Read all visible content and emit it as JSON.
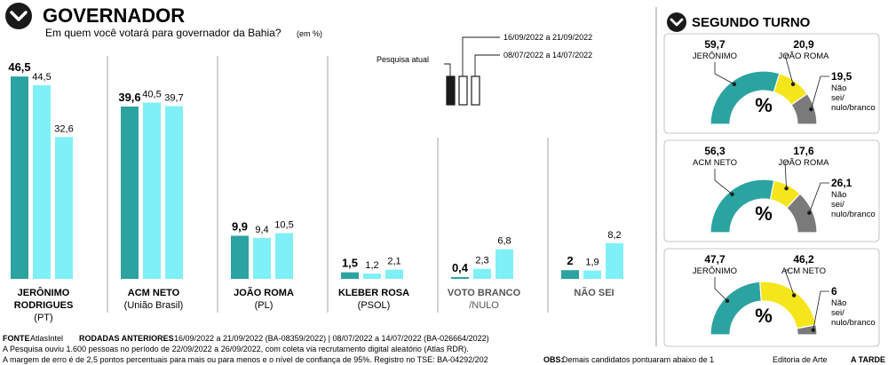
{
  "header": {
    "title": "GOVERNADOR",
    "subtitle": "Em quem você votará para governador da Bahia?",
    "unit": "(em %)"
  },
  "legend": {
    "current_label": "Pesquisa atual",
    "round1_period": "16/09/2022 a 21/09/2022",
    "round2_period": "08/07/2022 a 14/07/2022"
  },
  "chart_data": [
    {
      "type": "bar",
      "title": "GOVERNADOR",
      "subtitle": "Em quem você votará para governador da Bahia?",
      "ylim": [
        0,
        50
      ],
      "series": [
        {
          "name": "Pesquisa atual",
          "values": [
            46.5,
            39.6,
            9.9,
            1.5,
            0.4,
            2
          ],
          "labels": [
            "46,5",
            "39,6",
            "9,9",
            "1,5",
            "0,4",
            "2"
          ],
          "color": "#2ba3a0"
        },
        {
          "name": "16/09/2022 a 21/09/2022",
          "values": [
            44.5,
            40.5,
            9.4,
            1.2,
            2.3,
            1.9
          ],
          "labels": [
            "44,5",
            "40,5",
            "9,4",
            "1,2",
            "2,3",
            "1,9"
          ],
          "color": "#7ff0f6"
        },
        {
          "name": "08/07/2022 a 14/07/2022",
          "values": [
            32.6,
            39.7,
            10.5,
            2.1,
            6.8,
            8.2
          ],
          "labels": [
            "32,6",
            "39,7",
            "10,5",
            "2,1",
            "6,8",
            "8,2"
          ],
          "color": "#7ff0f6"
        }
      ],
      "categories": [
        {
          "line1": "JERÔNIMO",
          "line2": "RODRIGUES",
          "line3": "(PT)",
          "grey": false
        },
        {
          "line1": "ACM NETO",
          "line2": "(União Brasil)",
          "line3": "",
          "grey": false
        },
        {
          "line1": "JOÃO ROMA",
          "line2": "(PL)",
          "line3": "",
          "grey": false
        },
        {
          "line1": "KLEBER ROSA",
          "line2": "(PSOL)",
          "line3": "",
          "grey": false
        },
        {
          "line1": "VOTO BRANCO",
          "line2": "/NULO",
          "line3": "",
          "grey": true
        },
        {
          "line1": "NÃO SEI",
          "line2": "",
          "line3": "",
          "grey": true
        }
      ]
    },
    {
      "type": "pie",
      "title": "SEGUNDO TURNO",
      "center_label": "%",
      "charts": [
        {
          "slices": [
            {
              "name": "JERÔNIMO",
              "value": 59.7,
              "label": "59,7",
              "color": "#2ba3a0"
            },
            {
              "name": "JOÃO ROMA",
              "value": 20.9,
              "label": "20,9",
              "color": "#f5e51b"
            },
            {
              "name": "Não sei/ nulo/branco",
              "value": 19.5,
              "label": "19,5",
              "color": "#7a7a7a"
            }
          ]
        },
        {
          "slices": [
            {
              "name": "ACM NETO",
              "value": 56.3,
              "label": "56,3",
              "color": "#2ba3a0"
            },
            {
              "name": "JOÃO ROMA",
              "value": 17.6,
              "label": "17,6",
              "color": "#f5e51b"
            },
            {
              "name": "Não sei/ nulo/branco",
              "value": 26.1,
              "label": "26,1",
              "color": "#7a7a7a"
            }
          ]
        },
        {
          "slices": [
            {
              "name": "JERÔNIMO",
              "value": 47.7,
              "label": "47,7",
              "color": "#2ba3a0"
            },
            {
              "name": "ACM NETO",
              "value": 46.2,
              "label": "46,2",
              "color": "#f5e51b"
            },
            {
              "name": "Não sei/ nulo/branco",
              "value": 6,
              "label": "6",
              "color": "#7a7a7a"
            }
          ]
        }
      ]
    }
  ],
  "footer": {
    "fonte_label": "FONTE",
    "fonte_value": "AtlasIntel",
    "rodadas_label": "RODADAS ANTERIORES",
    "rodadas_value": "16/09/2022 a 21/09/2022 (BA-08359/2022)  |  08/07/2022 a 14/07/2022 (BA-026664/2022)",
    "line1": "A Pesquisa ouviu 1.600 pessoas no período de 22/09/2022 a 26/09/2022, com coleta via recrutamento digital aleatório (Atlas RDR).",
    "line2": "A margem de erro é de 2,5 pontos percentuais para mais ou para menos e o nível de confiança de 95%. Registro no TSE: BA-04292/202",
    "obs_label": "OBS:",
    "obs_value": "Demais candidatos pontuaram abaixo de 1",
    "credit_prefix": "Editoria de Arte",
    "credit_name": "A TARDE"
  },
  "colors": {
    "current": "#2ba3a0",
    "previous": "#7ff0f6",
    "yellow": "#f5e51b",
    "grey": "#7a7a7a",
    "divider": "#9a9a9a"
  }
}
